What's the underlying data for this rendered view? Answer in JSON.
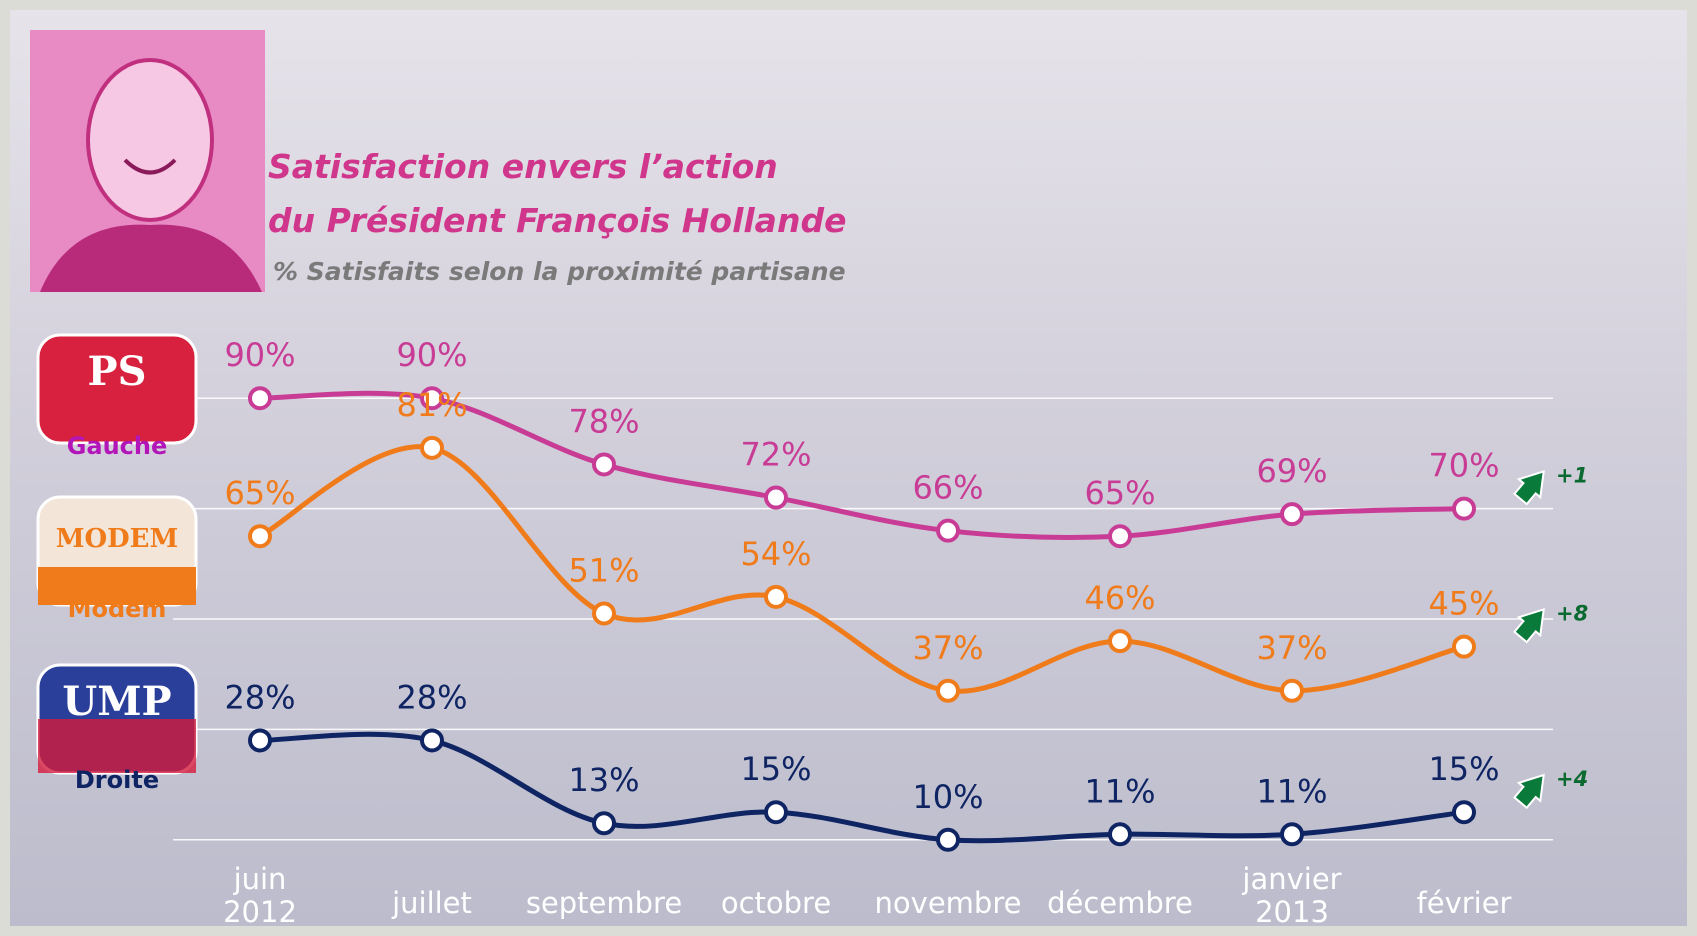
{
  "chart_data": {
    "type": "line",
    "title": "Satisfaction envers l’action\ndu Président François Hollande",
    "subtitle": "% Satisfaits selon la proximité partisane",
    "categories": [
      "juin\n2012",
      "juillet",
      "septembre",
      "octobre",
      "novembre",
      "décembre",
      "janvier\n2013",
      "février"
    ],
    "ylim": [
      0,
      100
    ],
    "yticks": [
      10,
      30,
      50,
      70,
      90
    ],
    "grid": true,
    "series": [
      {
        "name": "Gauche",
        "color": "#c83c96",
        "label_color": "#b316b8",
        "values": [
          90,
          90,
          78,
          72,
          66,
          65,
          69,
          70
        ],
        "value_labels": [
          "90%",
          "90%",
          "78%",
          "72%",
          "66%",
          "65%",
          "69%",
          "70%"
        ],
        "change": "+1",
        "logo": "PS"
      },
      {
        "name": "Modem",
        "color": "#f07b1a",
        "label_color": "#f07b1a",
        "values": [
          65,
          81,
          51,
          54,
          37,
          46,
          37,
          45
        ],
        "value_labels": [
          "65%",
          "81%",
          "51%",
          "54%",
          "37%",
          "46%",
          "37%",
          "45%"
        ],
        "change": "+8",
        "logo": "MODEM"
      },
      {
        "name": "Droite",
        "color": "#0f2463",
        "label_color": "#0f2463",
        "values": [
          28,
          28,
          13,
          15,
          10,
          11,
          11,
          15
        ],
        "value_labels": [
          "28%",
          "28%",
          "13%",
          "15%",
          "10%",
          "11%",
          "11%",
          "15%"
        ],
        "change": "+4",
        "logo": "UMP"
      }
    ]
  }
}
